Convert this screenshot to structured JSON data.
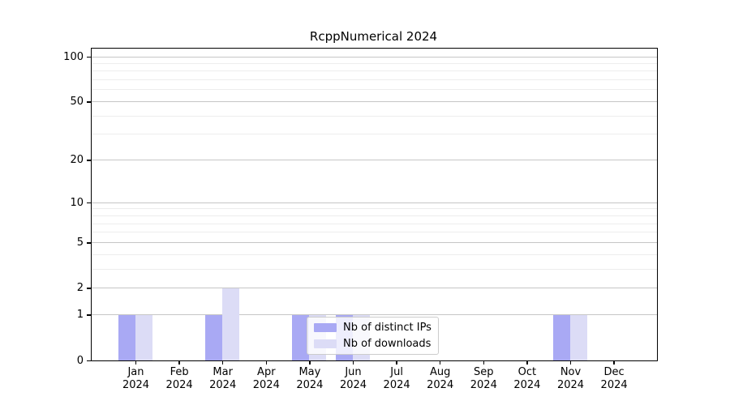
{
  "chart_data": {
    "type": "bar",
    "title": "RcppNumerical 2024",
    "categories": [
      "Jan",
      "Feb",
      "Mar",
      "Apr",
      "May",
      "Jun",
      "Jul",
      "Aug",
      "Sep",
      "Oct",
      "Nov",
      "Dec"
    ],
    "category_year": "2024",
    "series": [
      {
        "name": "Nb of distinct IPs",
        "color": "#a9a9f4",
        "values": [
          1,
          0,
          1,
          0,
          1,
          1,
          0,
          0,
          0,
          0,
          1,
          0
        ]
      },
      {
        "name": "Nb of downloads",
        "color": "#dcdcf6",
        "values": [
          1,
          0,
          2,
          0,
          1,
          1,
          0,
          0,
          0,
          0,
          1,
          0
        ]
      }
    ],
    "y_axis": {
      "scale": "log1p",
      "major_ticks": [
        0,
        1,
        2,
        5,
        10,
        20,
        50,
        100
      ],
      "minor_gridlines": [
        3,
        4,
        6,
        7,
        8,
        9,
        30,
        40,
        60,
        70,
        80,
        90
      ],
      "ylim": [
        0,
        113
      ]
    },
    "xlabel": "",
    "ylabel": "",
    "grid": true,
    "legend_position": "inside-bottom-center"
  },
  "colors": {
    "major_grid": "#c6c6c6",
    "minor_grid": "#ededed",
    "axis": "#000000",
    "legend_border": "#cccccc"
  }
}
